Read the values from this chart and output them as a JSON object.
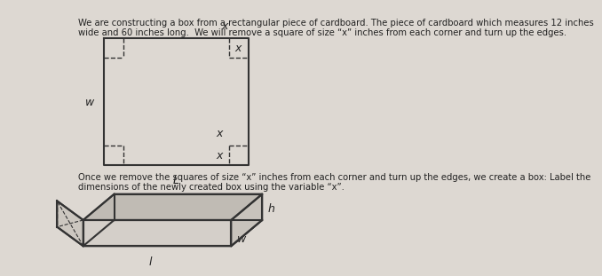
{
  "background_color": "#ddd8d2",
  "text_color": "#222222",
  "title_text1": "We are constructing a box from a rectangular piece of cardboard. The piece of cardboard which measures 12 inches",
  "title_text2": "wide and 60 inches long.  We will remove a square of size “x” inches from each corner and turn up the edges.",
  "body_text1": "Once we remove the squares of size “x” inches from each corner and turn up the edges, we create a box: Label the",
  "body_text2": "dimensions of the newly created box using the variable “x”.",
  "line_color": "#333333",
  "label_W": "w",
  "label_L": "L",
  "label_x": "x",
  "label_h": "h",
  "label_w2": "w",
  "label_l": "l"
}
